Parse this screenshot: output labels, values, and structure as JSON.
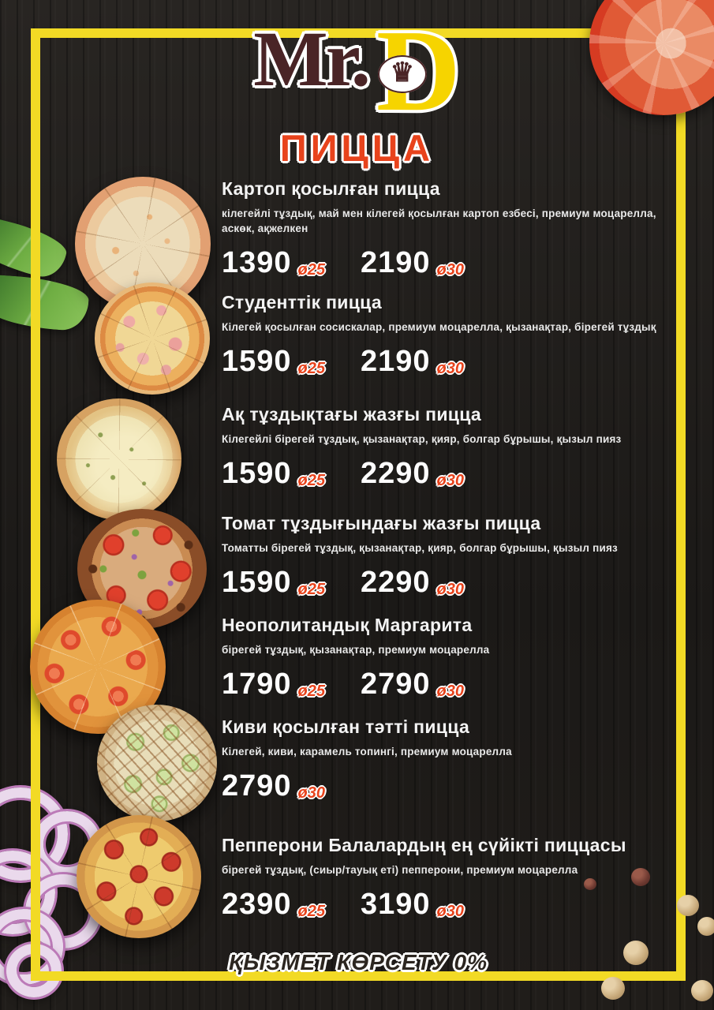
{
  "theme": {
    "background": "#201d1b",
    "frame_yellow": "#f2da25",
    "accent_red": "#e8431c",
    "logo_brown": "#4a2426",
    "logo_yellow": "#f6d400",
    "price_white": "#fdfdfd"
  },
  "logo": {
    "mr": "Mr.",
    "d": "D",
    "crown": "♛"
  },
  "title": "ПИЦЦА",
  "menu": {
    "items": [
      {
        "title": "Картоп қосылған пицца",
        "desc": "кілегейлі тұздық, май мен кілегей қосылған картоп езбесі, премиум моцарелла, аскөк, ақжелкен",
        "price1": "1390",
        "size1": "ø25",
        "price2": "2190",
        "size2": "ø30"
      },
      {
        "title": "Студенттік пицца",
        "desc": "Кілегей қосылған сосискалар, премиум моцарелла, қызанақтар, бірегей тұздық",
        "price1": "1590",
        "size1": "ø25",
        "price2": "2190",
        "size2": "ø30"
      },
      {
        "title": "Ақ тұздықтағы жазғы пицца",
        "desc": "Кілегейлі бірегей тұздық, қызанақтар, қияр, болгар бұрышы, қызыл пияз",
        "price1": "1590",
        "size1": "ø25",
        "price2": "2290",
        "size2": "ø30"
      },
      {
        "title": "Томат тұздығындағы жазғы пицца",
        "desc": "Томатты бірегей тұздық, қызанақтар, қияр, болгар бұрышы, қызыл пияз",
        "price1": "1590",
        "size1": "ø25",
        "price2": "2290",
        "size2": "ø30"
      },
      {
        "title": "Неополитандық Маргарита",
        "desc": "бірегей тұздық, қызанақтар, премиум моцарелла",
        "price1": "1790",
        "size1": "ø25",
        "price2": "2790",
        "size2": "ø30"
      },
      {
        "title": "Киви қосылған тәтті пицца",
        "desc": "Кілегей, киви, карамель топингі, премиум моцарелла",
        "price1": "2790",
        "size1": "ø30"
      },
      {
        "title": "Пепперони Балалардың ең сүйікті пиццасы",
        "desc": "бірегей тұздық, (сиыр/тауық еті) пепперони, премиум моцарелла",
        "price1": "2390",
        "size1": "ø25",
        "price2": "3190",
        "size2": "ø30"
      }
    ]
  },
  "footer": {
    "service_note": "ҚЫЗМЕТ КӨРСЕТУ 0%"
  }
}
